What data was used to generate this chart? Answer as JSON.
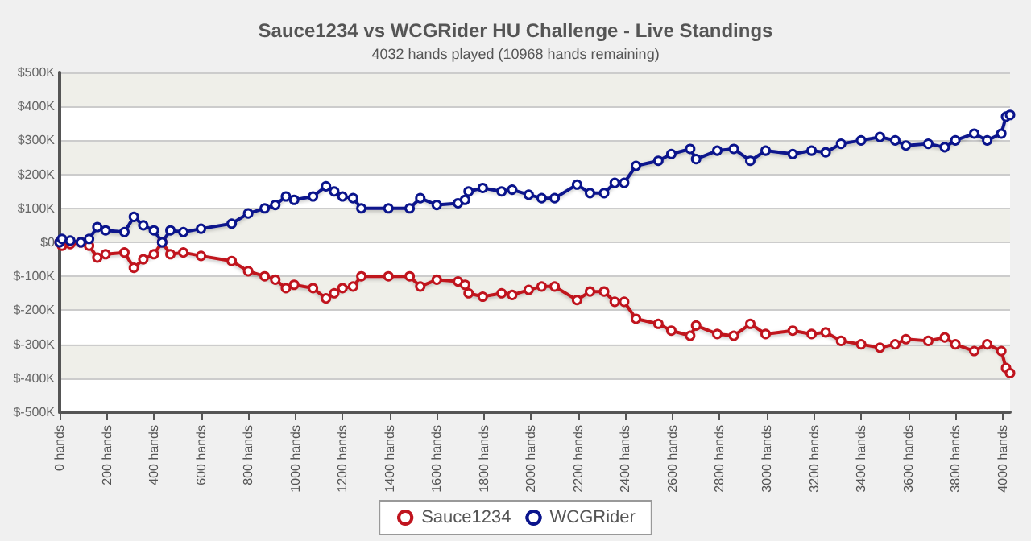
{
  "chart_data": {
    "type": "line",
    "title": "Sauce1234 vs WCGRider HU Challenge - Live Standings",
    "subtitle": "4032 hands played (10968 hands remaining)",
    "x": [
      0,
      10,
      45,
      90,
      125,
      160,
      195,
      275,
      315,
      355,
      400,
      435,
      470,
      525,
      600,
      730,
      800,
      870,
      915,
      960,
      995,
      1075,
      1130,
      1165,
      1200,
      1245,
      1280,
      1395,
      1485,
      1530,
      1600,
      1690,
      1720,
      1735,
      1795,
      1875,
      1920,
      1990,
      2045,
      2100,
      2195,
      2250,
      2310,
      2355,
      2395,
      2445,
      2540,
      2595,
      2675,
      2700,
      2790,
      2860,
      2930,
      2995,
      3110,
      3190,
      3250,
      3315,
      3400,
      3480,
      3545,
      3590,
      3685,
      3755,
      3800,
      3880,
      3935,
      3995,
      4015,
      4032
    ],
    "series": [
      {
        "name": "Sauce1234",
        "color": "#c0141e",
        "values": [
          0,
          -10000,
          -5000,
          0,
          -10000,
          -45000,
          -35000,
          -30000,
          -75000,
          -50000,
          -35000,
          0,
          -35000,
          -30000,
          -40000,
          -55000,
          -85000,
          -100000,
          -110000,
          -135000,
          -125000,
          -135000,
          -165000,
          -150000,
          -135000,
          -130000,
          -100000,
          -100000,
          -100000,
          -130000,
          -110000,
          -115000,
          -125000,
          -150000,
          -160000,
          -150000,
          -155000,
          -140000,
          -130000,
          -130000,
          -170000,
          -145000,
          -145000,
          -175000,
          -175000,
          -225000,
          -240000,
          -260000,
          -275000,
          -245000,
          -270000,
          -275000,
          -240000,
          -270000,
          -260000,
          -270000,
          -265000,
          -290000,
          -300000,
          -310000,
          -300000,
          -285000,
          -290000,
          -280000,
          -300000,
          -320000,
          -300000,
          -320000,
          -370000,
          -385000
        ]
      },
      {
        "name": "WCGRider",
        "color": "#0a148c",
        "values": [
          0,
          10000,
          5000,
          0,
          10000,
          45000,
          35000,
          30000,
          75000,
          50000,
          35000,
          0,
          35000,
          30000,
          40000,
          55000,
          85000,
          100000,
          110000,
          135000,
          125000,
          135000,
          165000,
          150000,
          135000,
          130000,
          100000,
          100000,
          100000,
          130000,
          110000,
          115000,
          125000,
          150000,
          160000,
          150000,
          155000,
          140000,
          130000,
          130000,
          170000,
          145000,
          145000,
          175000,
          175000,
          225000,
          240000,
          260000,
          275000,
          245000,
          270000,
          275000,
          240000,
          270000,
          260000,
          270000,
          265000,
          290000,
          300000,
          310000,
          300000,
          285000,
          290000,
          280000,
          300000,
          320000,
          300000,
          320000,
          370000,
          375000
        ]
      }
    ],
    "xlim": [
      0,
      4032
    ],
    "xticks": [
      {
        "value": 0,
        "label": "0 hands"
      },
      {
        "value": 200,
        "label": "200 hands"
      },
      {
        "value": 400,
        "label": "400 hands"
      },
      {
        "value": 600,
        "label": "600 hands"
      },
      {
        "value": 800,
        "label": "800 hands"
      },
      {
        "value": 1000,
        "label": "1000 hands"
      },
      {
        "value": 1200,
        "label": "1200 hands"
      },
      {
        "value": 1400,
        "label": "1400 hands"
      },
      {
        "value": 1600,
        "label": "1600 hands"
      },
      {
        "value": 1800,
        "label": "1800 hands"
      },
      {
        "value": 2000,
        "label": "2000 hands"
      },
      {
        "value": 2200,
        "label": "2200 hands"
      },
      {
        "value": 2400,
        "label": "2400 hands"
      },
      {
        "value": 2600,
        "label": "2600 hands"
      },
      {
        "value": 2800,
        "label": "2800 hands"
      },
      {
        "value": 3000,
        "label": "3000 hands"
      },
      {
        "value": 3200,
        "label": "3200 hands"
      },
      {
        "value": 3400,
        "label": "3400 hands"
      },
      {
        "value": 3600,
        "label": "3600 hands"
      },
      {
        "value": 3800,
        "label": "3800 hands"
      },
      {
        "value": 4000,
        "label": "4000 hands"
      }
    ],
    "ylim": [
      -500000,
      500000
    ],
    "yticks": [
      {
        "value": -500000,
        "label": "$-500K"
      },
      {
        "value": -400000,
        "label": "$-400K"
      },
      {
        "value": -300000,
        "label": "$-300K"
      },
      {
        "value": -200000,
        "label": "$-200K"
      },
      {
        "value": -100000,
        "label": "$-100K"
      },
      {
        "value": 0,
        "label": "$0"
      },
      {
        "value": 100000,
        "label": "$100K"
      },
      {
        "value": 200000,
        "label": "$200K"
      },
      {
        "value": 300000,
        "label": "$300K"
      },
      {
        "value": 400000,
        "label": "$400K"
      },
      {
        "value": 500000,
        "label": "$500K"
      }
    ],
    "grid": "y",
    "legend": "bottom",
    "marker": "circle",
    "line_style": "solid"
  }
}
